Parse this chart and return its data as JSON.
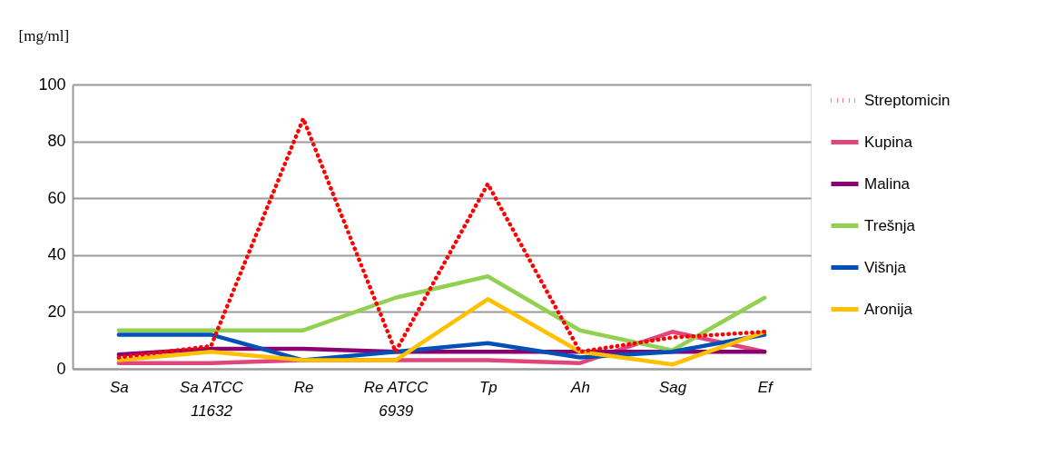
{
  "chart_data": {
    "type": "line",
    "ylabel": "[mg/ml]",
    "categories": [
      "Sa",
      "Sa ATCC 11632",
      "Re",
      "Re ATCC 6939",
      "Tp",
      "Ah",
      "Sag",
      "Ef"
    ],
    "series": [
      {
        "name": "Streptomicin",
        "color": "#ff0000",
        "line_style": "dotted",
        "values": [
          4,
          8,
          88,
          6,
          65,
          6,
          11,
          13
        ]
      },
      {
        "name": "Kupina",
        "color": "#e0457b",
        "values": [
          2,
          2,
          3,
          3,
          3,
          2,
          13,
          6
        ]
      },
      {
        "name": "Malina",
        "color": "#8b0071",
        "values": [
          5,
          7,
          7,
          6,
          6,
          6,
          6,
          6
        ]
      },
      {
        "name": "Trešnja",
        "color": "#92d050",
        "values": [
          13.5,
          13.5,
          13.5,
          25,
          32.5,
          13.5,
          6.5,
          25
        ]
      },
      {
        "name": "Višnja",
        "color": "#0050b8",
        "values": [
          12,
          12,
          3,
          6,
          9,
          4,
          6,
          12
        ]
      },
      {
        "name": "Aronija",
        "color": "#ffc000",
        "values": [
          3,
          6,
          3,
          3,
          24.5,
          6,
          1.5,
          13
        ]
      }
    ],
    "ylim": [
      0,
      100
    ],
    "yticks": [
      0,
      20,
      40,
      60,
      80,
      100
    ],
    "grid": "y",
    "legend": "right",
    "marker": "none",
    "line_style": "solid"
  }
}
